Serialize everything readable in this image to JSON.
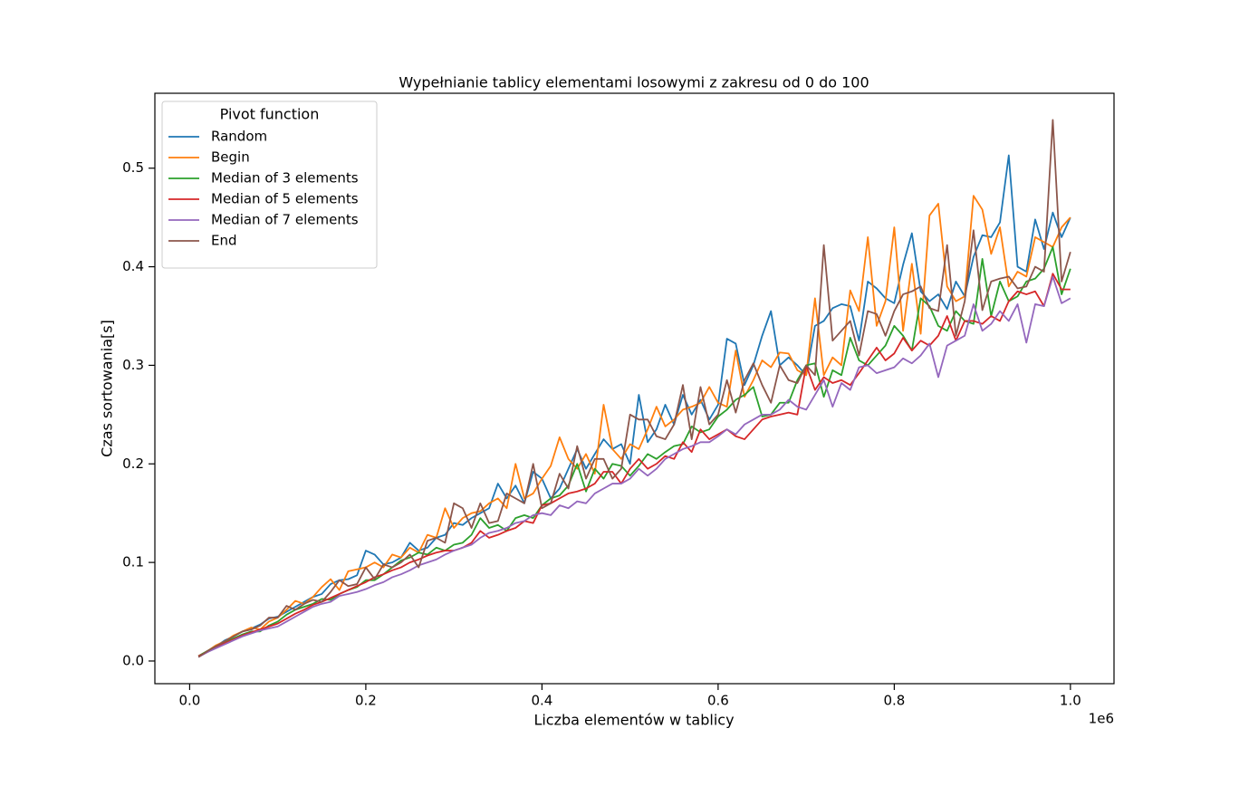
{
  "chart_data": {
    "type": "line",
    "title": "Wypełnianie tablicy elementami losowymi z zakresu od 0 do 100",
    "x_label": "Liczba elementów w tablicy",
    "y_label": "Czas sortowania[s]",
    "x_offset_label": "1e6",
    "legend_title": "Pivot function",
    "legend": "upper left",
    "grid": false,
    "xlim": [
      -39500,
      1049500
    ],
    "ylim": [
      -0.023,
      0.576
    ],
    "xticks": [
      {
        "value": 0,
        "label": "0.0"
      },
      {
        "value": 200000,
        "label": "0.2"
      },
      {
        "value": 400000,
        "label": "0.4"
      },
      {
        "value": 600000,
        "label": "0.6"
      },
      {
        "value": 800000,
        "label": "0.8"
      },
      {
        "value": 1000000,
        "label": "1.0"
      }
    ],
    "yticks": [
      {
        "value": 0,
        "label": "0.0"
      },
      0.1,
      0.2,
      0.3,
      0.4,
      0.5
    ],
    "x": [
      10000,
      20000,
      30000,
      40000,
      50000,
      60000,
      70000,
      80000,
      90000,
      100000,
      110000,
      120000,
      130000,
      140000,
      150000,
      160000,
      170000,
      180000,
      190000,
      200000,
      210000,
      220000,
      230000,
      240000,
      250000,
      260000,
      270000,
      280000,
      290000,
      300000,
      310000,
      320000,
      330000,
      340000,
      350000,
      360000,
      370000,
      380000,
      390000,
      400000,
      410000,
      420000,
      430000,
      440000,
      450000,
      460000,
      470000,
      480000,
      490000,
      500000,
      510000,
      520000,
      530000,
      540000,
      550000,
      560000,
      570000,
      580000,
      590000,
      600000,
      610000,
      620000,
      630000,
      640000,
      650000,
      660000,
      670000,
      680000,
      690000,
      700000,
      710000,
      720000,
      730000,
      740000,
      750000,
      760000,
      770000,
      780000,
      790000,
      800000,
      810000,
      820000,
      830000,
      840000,
      850000,
      860000,
      870000,
      880000,
      890000,
      900000,
      910000,
      920000,
      930000,
      940000,
      950000,
      960000,
      970000,
      980000,
      990000,
      1000000
    ],
    "series": [
      {
        "name": "Random",
        "color": "#1f77b4",
        "values": [
          0.005,
          0.01,
          0.015,
          0.021,
          0.025,
          0.03,
          0.033,
          0.037,
          0.043,
          0.045,
          0.05,
          0.055,
          0.06,
          0.065,
          0.068,
          0.078,
          0.082,
          0.083,
          0.087,
          0.112,
          0.108,
          0.098,
          0.1,
          0.105,
          0.12,
          0.112,
          0.115,
          0.125,
          0.128,
          0.14,
          0.138,
          0.145,
          0.15,
          0.155,
          0.18,
          0.165,
          0.178,
          0.16,
          0.192,
          0.185,
          0.165,
          0.175,
          0.195,
          0.215,
          0.195,
          0.21,
          0.225,
          0.215,
          0.22,
          0.2,
          0.27,
          0.222,
          0.235,
          0.26,
          0.24,
          0.27,
          0.25,
          0.265,
          0.245,
          0.26,
          0.327,
          0.322,
          0.28,
          0.3,
          0.33,
          0.355,
          0.3,
          0.308,
          0.3,
          0.29,
          0.34,
          0.345,
          0.358,
          0.362,
          0.36,
          0.325,
          0.385,
          0.378,
          0.368,
          0.363,
          0.402,
          0.434,
          0.375,
          0.365,
          0.372,
          0.357,
          0.385,
          0.37,
          0.41,
          0.432,
          0.43,
          0.445,
          0.513,
          0.4,
          0.395,
          0.448,
          0.418,
          0.455,
          0.43,
          0.45
        ]
      },
      {
        "name": "Begin",
        "color": "#ff7f0e",
        "values": [
          0.005,
          0.01,
          0.016,
          0.02,
          0.026,
          0.03,
          0.034,
          0.032,
          0.04,
          0.044,
          0.052,
          0.061,
          0.058,
          0.065,
          0.075,
          0.083,
          0.072,
          0.091,
          0.093,
          0.095,
          0.1,
          0.095,
          0.108,
          0.105,
          0.115,
          0.11,
          0.128,
          0.125,
          0.155,
          0.135,
          0.145,
          0.15,
          0.152,
          0.16,
          0.165,
          0.155,
          0.2,
          0.165,
          0.17,
          0.185,
          0.198,
          0.227,
          0.205,
          0.195,
          0.21,
          0.19,
          0.26,
          0.215,
          0.205,
          0.22,
          0.215,
          0.235,
          0.258,
          0.238,
          0.245,
          0.255,
          0.258,
          0.262,
          0.278,
          0.262,
          0.258,
          0.315,
          0.268,
          0.285,
          0.305,
          0.298,
          0.313,
          0.312,
          0.295,
          0.29,
          0.368,
          0.29,
          0.308,
          0.3,
          0.376,
          0.355,
          0.43,
          0.34,
          0.365,
          0.44,
          0.335,
          0.403,
          0.332,
          0.452,
          0.464,
          0.38,
          0.365,
          0.37,
          0.472,
          0.458,
          0.413,
          0.44,
          0.38,
          0.395,
          0.39,
          0.43,
          0.425,
          0.42,
          0.44,
          0.45
        ]
      },
      {
        "name": "Median of 3 elements",
        "color": "#2ca02c",
        "values": [
          0.005,
          0.01,
          0.015,
          0.019,
          0.023,
          0.027,
          0.03,
          0.03,
          0.036,
          0.04,
          0.047,
          0.052,
          0.055,
          0.058,
          0.063,
          0.062,
          0.068,
          0.072,
          0.075,
          0.082,
          0.082,
          0.088,
          0.095,
          0.102,
          0.105,
          0.11,
          0.108,
          0.115,
          0.112,
          0.118,
          0.12,
          0.128,
          0.145,
          0.135,
          0.138,
          0.132,
          0.145,
          0.148,
          0.145,
          0.158,
          0.165,
          0.168,
          0.178,
          0.2,
          0.172,
          0.195,
          0.185,
          0.2,
          0.198,
          0.188,
          0.198,
          0.21,
          0.205,
          0.212,
          0.218,
          0.22,
          0.238,
          0.232,
          0.235,
          0.248,
          0.255,
          0.265,
          0.27,
          0.278,
          0.248,
          0.25,
          0.262,
          0.262,
          0.285,
          0.3,
          0.302,
          0.268,
          0.295,
          0.29,
          0.328,
          0.305,
          0.3,
          0.31,
          0.32,
          0.34,
          0.33,
          0.315,
          0.368,
          0.36,
          0.34,
          0.335,
          0.355,
          0.345,
          0.342,
          0.408,
          0.35,
          0.385,
          0.365,
          0.37,
          0.385,
          0.388,
          0.398,
          0.42,
          0.372,
          0.398
        ]
      },
      {
        "name": "Median of 5 elements",
        "color": "#d62728",
        "values": [
          0.005,
          0.009,
          0.014,
          0.018,
          0.022,
          0.026,
          0.029,
          0.032,
          0.035,
          0.038,
          0.043,
          0.048,
          0.052,
          0.057,
          0.06,
          0.064,
          0.068,
          0.072,
          0.076,
          0.08,
          0.085,
          0.088,
          0.092,
          0.095,
          0.1,
          0.103,
          0.107,
          0.11,
          0.112,
          0.112,
          0.115,
          0.12,
          0.132,
          0.125,
          0.128,
          0.132,
          0.135,
          0.142,
          0.14,
          0.158,
          0.16,
          0.165,
          0.17,
          0.172,
          0.175,
          0.18,
          0.192,
          0.192,
          0.18,
          0.195,
          0.205,
          0.195,
          0.2,
          0.208,
          0.205,
          0.222,
          0.212,
          0.235,
          0.225,
          0.23,
          0.235,
          0.228,
          0.225,
          0.235,
          0.245,
          0.248,
          0.25,
          0.252,
          0.25,
          0.3,
          0.275,
          0.288,
          0.282,
          0.285,
          0.28,
          0.292,
          0.305,
          0.318,
          0.305,
          0.312,
          0.328,
          0.315,
          0.325,
          0.32,
          0.33,
          0.35,
          0.325,
          0.345,
          0.345,
          0.342,
          0.35,
          0.345,
          0.365,
          0.375,
          0.372,
          0.375,
          0.36,
          0.393,
          0.377,
          0.377
        ]
      },
      {
        "name": "Median of 7 elements",
        "color": "#9467bd",
        "values": [
          0.004,
          0.009,
          0.013,
          0.017,
          0.021,
          0.025,
          0.028,
          0.031,
          0.033,
          0.035,
          0.04,
          0.045,
          0.05,
          0.055,
          0.058,
          0.06,
          0.066,
          0.068,
          0.07,
          0.073,
          0.077,
          0.08,
          0.085,
          0.088,
          0.092,
          0.097,
          0.1,
          0.103,
          0.108,
          0.112,
          0.115,
          0.118,
          0.125,
          0.13,
          0.132,
          0.135,
          0.14,
          0.142,
          0.148,
          0.15,
          0.148,
          0.158,
          0.155,
          0.162,
          0.16,
          0.17,
          0.175,
          0.18,
          0.18,
          0.185,
          0.195,
          0.188,
          0.195,
          0.205,
          0.21,
          0.215,
          0.218,
          0.222,
          0.222,
          0.228,
          0.235,
          0.23,
          0.24,
          0.245,
          0.25,
          0.25,
          0.255,
          0.265,
          0.258,
          0.255,
          0.27,
          0.285,
          0.258,
          0.282,
          0.275,
          0.298,
          0.3,
          0.292,
          0.295,
          0.298,
          0.307,
          0.302,
          0.31,
          0.322,
          0.288,
          0.32,
          0.325,
          0.33,
          0.362,
          0.335,
          0.342,
          0.355,
          0.345,
          0.362,
          0.323,
          0.362,
          0.36,
          0.39,
          0.363,
          0.368
        ]
      },
      {
        "name": "End",
        "color": "#8c564b",
        "values": [
          0.004,
          0.01,
          0.015,
          0.02,
          0.025,
          0.03,
          0.032,
          0.036,
          0.044,
          0.044,
          0.056,
          0.052,
          0.058,
          0.062,
          0.06,
          0.07,
          0.082,
          0.076,
          0.078,
          0.095,
          0.083,
          0.098,
          0.095,
          0.1,
          0.108,
          0.095,
          0.122,
          0.125,
          0.12,
          0.16,
          0.155,
          0.135,
          0.16,
          0.14,
          0.142,
          0.17,
          0.165,
          0.16,
          0.2,
          0.155,
          0.16,
          0.19,
          0.175,
          0.218,
          0.185,
          0.205,
          0.205,
          0.185,
          0.195,
          0.25,
          0.245,
          0.245,
          0.228,
          0.225,
          0.24,
          0.28,
          0.225,
          0.278,
          0.24,
          0.25,
          0.285,
          0.252,
          0.285,
          0.302,
          0.28,
          0.262,
          0.3,
          0.285,
          0.282,
          0.3,
          0.29,
          0.422,
          0.325,
          0.335,
          0.345,
          0.31,
          0.355,
          0.352,
          0.33,
          0.355,
          0.372,
          0.375,
          0.38,
          0.358,
          0.355,
          0.422,
          0.33,
          0.365,
          0.437,
          0.356,
          0.385,
          0.388,
          0.39,
          0.378,
          0.38,
          0.4,
          0.395,
          0.549,
          0.385,
          0.415
        ]
      }
    ]
  }
}
